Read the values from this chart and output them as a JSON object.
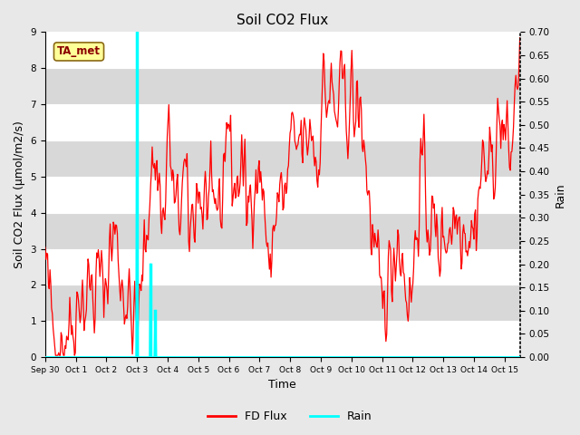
{
  "title": "Soil CO2 Flux",
  "xlabel": "Time",
  "ylabel_left": "Soil CO2 Flux (μmol/m2/s)",
  "ylabel_right": "Rain",
  "ylim_left": [
    0,
    9.0
  ],
  "ylim_right": [
    0,
    0.7
  ],
  "yticks_left": [
    0.0,
    1.0,
    2.0,
    3.0,
    4.0,
    5.0,
    6.0,
    7.0,
    8.0,
    9.0
  ],
  "yticks_right": [
    0.0,
    0.05,
    0.1,
    0.15,
    0.2,
    0.25,
    0.3,
    0.35,
    0.4,
    0.45,
    0.5,
    0.55,
    0.6,
    0.65,
    0.7
  ],
  "xtick_labels": [
    "Sep 30",
    "Oct 1",
    "Oct 2",
    "Oct 3",
    "Oct 4",
    "Oct 5",
    "Oct 6",
    "Oct 7",
    "Oct 8",
    "Oct 9",
    "Oct 10",
    "Oct 11",
    "Oct 12",
    "Oct 13",
    "Oct 14",
    "Oct 15"
  ],
  "annotation_text": "TA_met",
  "annotation_color": "#8B0000",
  "annotation_bg": "#FFFF99",
  "flux_color": "#FF0000",
  "rain_color": "#00FFFF",
  "background_color": "#e8e8e8",
  "plot_bg": "#ffffff",
  "band_color": "#d8d8d8",
  "legend_flux_label": "FD Flux",
  "legend_rain_label": "Rain",
  "title_fontsize": 11,
  "axis_label_fontsize": 9,
  "tick_fontsize": 7.5
}
